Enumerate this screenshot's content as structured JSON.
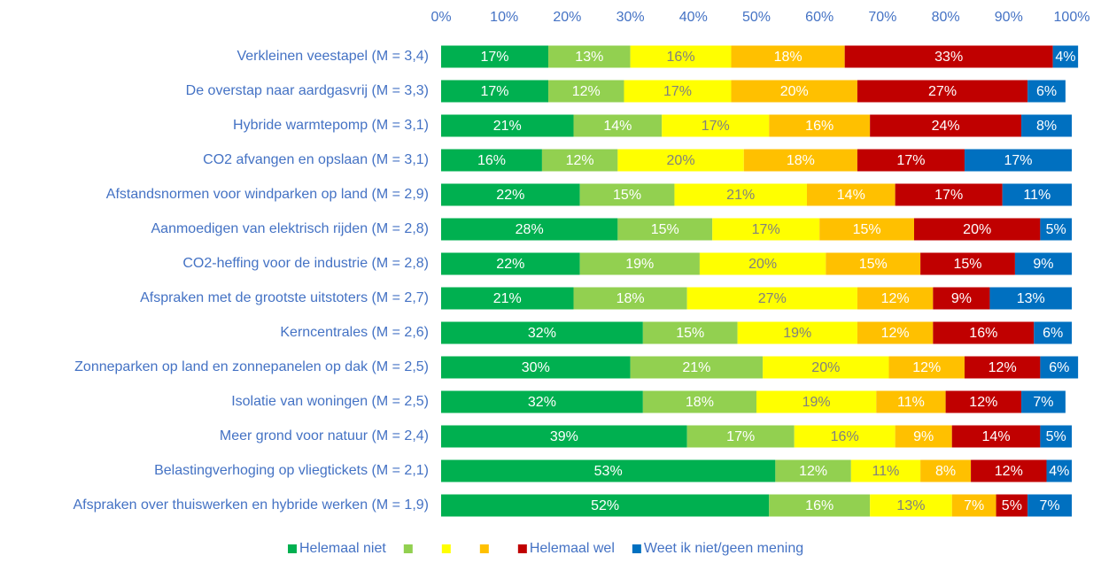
{
  "chart_data": {
    "type": "stacked-bar-horizontal",
    "categories": [
      "Verkleinen veestapel (M = 3,4)",
      "De overstap naar aardgasvrij (M = 3,3)",
      "Hybride warmtepomp (M = 3,1)",
      "CO2 afvangen en opslaan (M = 3,1)",
      "Afstandsnormen voor windparken op land (M = 2,9)",
      "Aanmoedigen van elektrisch rijden (M = 2,8)",
      "CO2-heffing voor de industrie (M = 2,8)",
      "Afspraken met de grootste uitstoters (M = 2,7)",
      "Kerncentrales (M = 2,6)",
      "Zonneparken op land en zonnepanelen op dak (M = 2,5)",
      "Isolatie van woningen (M = 2,5)",
      "Meer grond voor natuur (M = 2,4)",
      "Belastingverhoging op vliegtickets (M = 2,1)",
      "Afspraken over thuiswerken en hybride werken (M = 1,9)"
    ],
    "series": [
      {
        "name": "Helemaal niet",
        "color": "#00b050",
        "label_color": "#ffffff",
        "values": [
          17,
          17,
          21,
          16,
          22,
          28,
          22,
          21,
          32,
          30,
          32,
          39,
          53,
          52
        ],
        "value_labels": [
          "17%",
          "17%",
          "21%",
          "16%",
          "22%",
          "28%",
          "22%",
          "21%",
          "32%",
          "30%",
          "32%",
          "39%",
          "53%",
          "52%"
        ]
      },
      {
        "color": "#92d050",
        "label_color": "#ffffff",
        "values": [
          13,
          12,
          14,
          12,
          15,
          15,
          19,
          18,
          15,
          21,
          18,
          17,
          12,
          16
        ],
        "value_labels": [
          "13%",
          "12%",
          "14%",
          "12%",
          "15%",
          "15%",
          "19%",
          "18%",
          "15%",
          "21%",
          "18%",
          "17%",
          "12%",
          "16%"
        ]
      },
      {
        "color": "#ffff00",
        "label_color": "#808080",
        "values": [
          16,
          17,
          17,
          20,
          21,
          17,
          20,
          27,
          19,
          20,
          19,
          16,
          11,
          13
        ],
        "value_labels": [
          "16%",
          "17%",
          "17%",
          "20%",
          "21%",
          "17%",
          "20%",
          "27%",
          "19%",
          "20%",
          "19%",
          "16%",
          "11%",
          "13%"
        ]
      },
      {
        "color": "#ffc000",
        "label_color": "#ffffff",
        "values": [
          18,
          20,
          16,
          18,
          14,
          15,
          15,
          12,
          12,
          12,
          11,
          9,
          8,
          7
        ],
        "value_labels": [
          "18%",
          "20%",
          "16%",
          "18%",
          "14%",
          "15%",
          "15%",
          "12%",
          "12%",
          "12%",
          "11%",
          "9%",
          "8%",
          "7%"
        ]
      },
      {
        "name": "Helemaal wel",
        "color": "#c00000",
        "label_color": "#ffffff",
        "values": [
          33,
          27,
          24,
          17,
          17,
          20,
          15,
          9,
          16,
          12,
          12,
          14,
          12,
          5
        ],
        "value_labels": [
          "33%",
          "27%",
          "24%",
          "17%",
          "17%",
          "20%",
          "15%",
          "9%",
          "16%",
          "12%",
          "12%",
          "14%",
          "12%",
          "5%"
        ]
      },
      {
        "name": "Weet ik niet/geen mening",
        "color": "#0070c0",
        "label_color": "#ffffff",
        "values": [
          4,
          6,
          8,
          17,
          11,
          5,
          9,
          13,
          6,
          6,
          7,
          5,
          4,
          7
        ],
        "value_labels": [
          "4%",
          "6%",
          "8%",
          "17%",
          "11%",
          "5%",
          "9%",
          "13%",
          "6%",
          "6%",
          "7%",
          "5%",
          "4%",
          "7%"
        ]
      }
    ],
    "xlim": [
      0,
      100
    ],
    "xticks": [
      {
        "value": 0,
        "label": "0%"
      },
      {
        "value": 10,
        "label": "10%"
      },
      {
        "value": 20,
        "label": "20%"
      },
      {
        "value": 30,
        "label": "30%"
      },
      {
        "value": 40,
        "label": "40%"
      },
      {
        "value": 50,
        "label": "50%"
      },
      {
        "value": 60,
        "label": "60%"
      },
      {
        "value": 70,
        "label": "70%"
      },
      {
        "value": 80,
        "label": "80%"
      },
      {
        "value": 90,
        "label": "90%"
      },
      {
        "value": 100,
        "label": "100%"
      }
    ],
    "legend": "bottom",
    "text_color": "#4472c4"
  }
}
